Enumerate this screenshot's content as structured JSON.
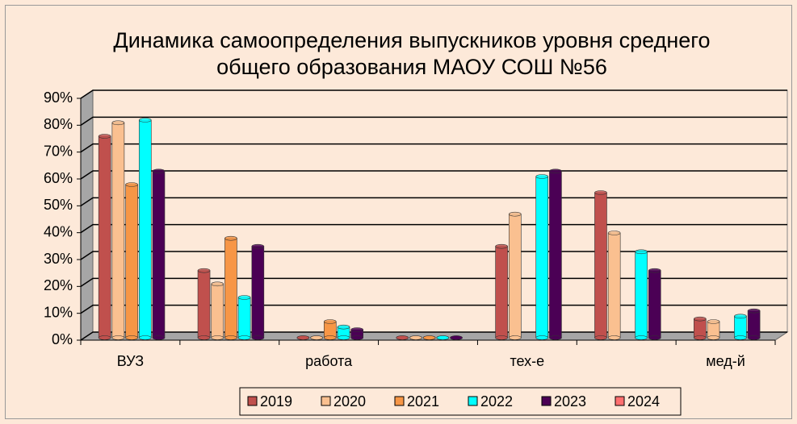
{
  "chart_data": {
    "type": "bar",
    "title": "Динамика самоопределения выпускников уровня среднего общего образования МАОУ СОШ №56",
    "categories": [
      "ВУЗ",
      null,
      "работа",
      null,
      "тех-е",
      null,
      "мед-й"
    ],
    "series": [
      {
        "name": "2019",
        "color": "#c0504d",
        "values": [
          75,
          25,
          0,
          0,
          34,
          54,
          7
        ]
      },
      {
        "name": "2020",
        "color": "#fac090",
        "values": [
          80,
          20,
          0,
          0,
          46,
          39,
          6
        ]
      },
      {
        "name": "2021",
        "color": "#f79646",
        "values": [
          57,
          37,
          6,
          0,
          null,
          null,
          null
        ]
      },
      {
        "name": "2022",
        "color": "#00ffff",
        "values": [
          81,
          15,
          4,
          0,
          60,
          32,
          8
        ]
      },
      {
        "name": "2023",
        "color": "#4b0055",
        "values": [
          62,
          34,
          3,
          0,
          62,
          25,
          10
        ]
      },
      {
        "name": "2024",
        "color": "#ff6f6f",
        "values": [
          null,
          null,
          null,
          null,
          null,
          null,
          null
        ]
      }
    ],
    "ylim": [
      0,
      90
    ],
    "yticks": [
      {
        "value": 0,
        "label": "0%"
      },
      {
        "value": 10,
        "label": "10%"
      },
      {
        "value": 20,
        "label": "20%"
      },
      {
        "value": 30,
        "label": "30%"
      },
      {
        "value": 40,
        "label": "40%"
      },
      {
        "value": 50,
        "label": "50%"
      },
      {
        "value": 60,
        "label": "60%"
      },
      {
        "value": 70,
        "label": "70%"
      },
      {
        "value": 80,
        "label": "80%"
      },
      {
        "value": 90,
        "label": "90%"
      }
    ],
    "grid": true
  }
}
